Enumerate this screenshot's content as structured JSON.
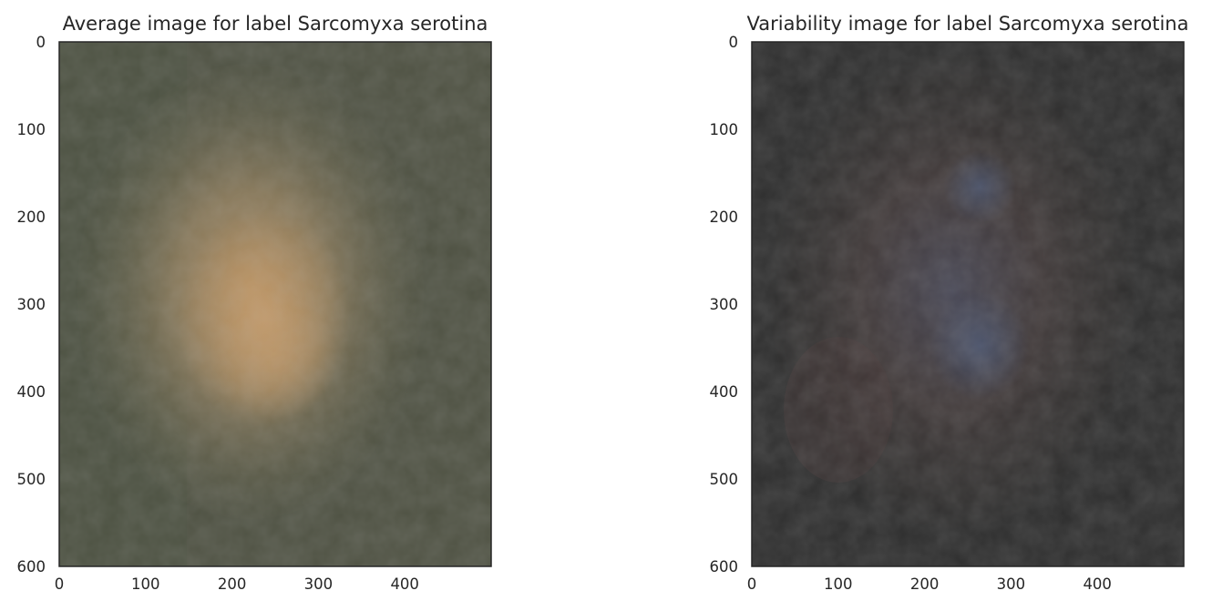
{
  "chart_data": [
    {
      "type": "heatmap",
      "title": "Average image for label Sarcomyxa serotina",
      "xlabel": "",
      "ylabel": "",
      "xlim": [
        0,
        500
      ],
      "ylim": [
        600,
        0
      ],
      "xticks": [
        "0",
        "100",
        "200",
        "300",
        "400"
      ],
      "yticks": [
        "0",
        "100",
        "200",
        "300",
        "400",
        "500",
        "600"
      ],
      "grid": false,
      "colors": {
        "background": "#4f5243",
        "glow_inner": "#b08a5c",
        "glow_outer": "#8f7e5d",
        "frame": "#262626"
      }
    },
    {
      "type": "heatmap",
      "title": "Variability image for label Sarcomyxa serotina",
      "xlabel": "",
      "ylabel": "",
      "xlim": [
        0,
        500
      ],
      "ylim": [
        600,
        0
      ],
      "xticks": [
        "0",
        "100",
        "200",
        "300",
        "400"
      ],
      "yticks": [
        "0",
        "100",
        "200",
        "300",
        "400",
        "500",
        "600"
      ],
      "grid": false,
      "colors": {
        "background": "#2e2e2e",
        "glow_inner": "#4a4a5e",
        "glow_outer": "#4b3f3b",
        "frame": "#262626"
      }
    }
  ]
}
